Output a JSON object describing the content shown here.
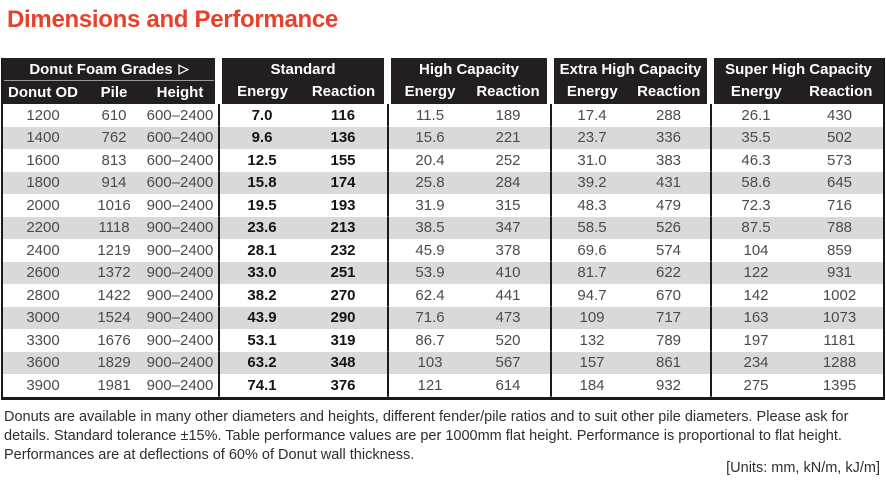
{
  "title": "Dimensions and Performance",
  "colors": {
    "title_red": "#e8402b",
    "header_bg": "#231f20",
    "stripe_gray": "#d9d9d9",
    "border_black": "#1a1a1a"
  },
  "watermark": {
    "icon": "anchor-crest"
  },
  "table": {
    "group1": {
      "label": "Donut Foam Grades",
      "arrow": "▷"
    },
    "dim_headers": [
      "Donut OD",
      "Pile",
      "Height"
    ],
    "groups": [
      "Standard",
      "High Capacity",
      "Extra High Capacity",
      "Super High Capacity"
    ],
    "sub": [
      "Energy",
      "Reaction"
    ],
    "rows": [
      [
        "1200",
        "610",
        "600–2400",
        "7.0",
        "116",
        "11.5",
        "189",
        "17.4",
        "288",
        "26.1",
        "430"
      ],
      [
        "1400",
        "762",
        "600–2400",
        "9.6",
        "136",
        "15.6",
        "221",
        "23.7",
        "336",
        "35.5",
        "502"
      ],
      [
        "1600",
        "813",
        "600–2400",
        "12.5",
        "155",
        "20.4",
        "252",
        "31.0",
        "383",
        "46.3",
        "573"
      ],
      [
        "1800",
        "914",
        "600–2400",
        "15.8",
        "174",
        "25.8",
        "284",
        "39.2",
        "431",
        "58.6",
        "645"
      ],
      [
        "2000",
        "1016",
        "900–2400",
        "19.5",
        "193",
        "31.9",
        "315",
        "48.3",
        "479",
        "72.3",
        "716"
      ],
      [
        "2200",
        "1118",
        "900–2400",
        "23.6",
        "213",
        "38.5",
        "347",
        "58.5",
        "526",
        "87.5",
        "788"
      ],
      [
        "2400",
        "1219",
        "900–2400",
        "28.1",
        "232",
        "45.9",
        "378",
        "69.6",
        "574",
        "104",
        "859"
      ],
      [
        "2600",
        "1372",
        "900–2400",
        "33.0",
        "251",
        "53.9",
        "410",
        "81.7",
        "622",
        "122",
        "931"
      ],
      [
        "2800",
        "1422",
        "900–2400",
        "38.2",
        "270",
        "62.4",
        "441",
        "94.7",
        "670",
        "142",
        "1002"
      ],
      [
        "3000",
        "1524",
        "900–2400",
        "43.9",
        "290",
        "71.6",
        "473",
        "109",
        "717",
        "163",
        "1073"
      ],
      [
        "3300",
        "1676",
        "900–2400",
        "53.1",
        "319",
        "86.7",
        "520",
        "132",
        "789",
        "197",
        "1181"
      ],
      [
        "3600",
        "1829",
        "900–2400",
        "63.2",
        "348",
        "103",
        "567",
        "157",
        "861",
        "234",
        "1288"
      ],
      [
        "3900",
        "1981",
        "900–2400",
        "74.1",
        "376",
        "121",
        "614",
        "184",
        "932",
        "275",
        "1395"
      ]
    ]
  },
  "footer": {
    "note": "Donuts are available in many other diameters and heights, different fender/pile ratios and to suit other pile diameters. Please ask for details. Standard tolerance ±15%. Table performance values are per 1000mm flat height. Performance is proportional to flat height. Performances are at deflections of 60% of Donut wall thickness.",
    "units": "[Units: mm, kN/m, kJ/m]"
  }
}
